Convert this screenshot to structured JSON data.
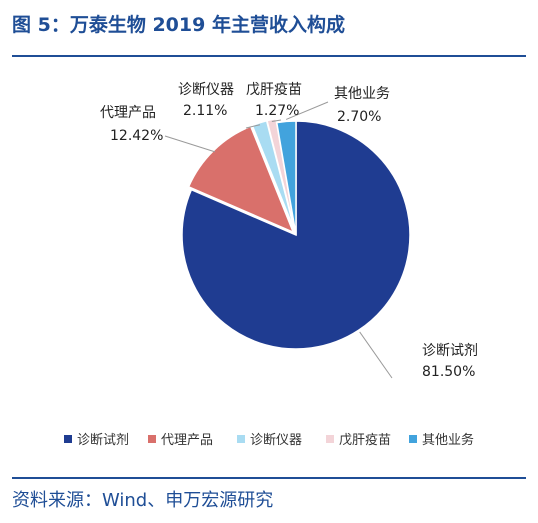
{
  "title": "图 5：万泰生物 2019 年主营收入构成",
  "source": "资料来源：Wind、申万宏源研究",
  "chart_data": {
    "type": "pie",
    "unit": "%",
    "categories": [
      "诊断试剂",
      "代理产品",
      "诊断仪器",
      "戊肝疫苗",
      "其他业务"
    ],
    "values": [
      81.5,
      12.42,
      2.11,
      1.27,
      2.7
    ],
    "value_labels": [
      "81.50%",
      "12.42%",
      "2.11%",
      "1.27%",
      "2.70%"
    ],
    "colors": [
      "#1f3c91",
      "#d9706b",
      "#a9dcf2",
      "#f3d4d8",
      "#42a3dd"
    ],
    "legend_position": "bottom"
  }
}
